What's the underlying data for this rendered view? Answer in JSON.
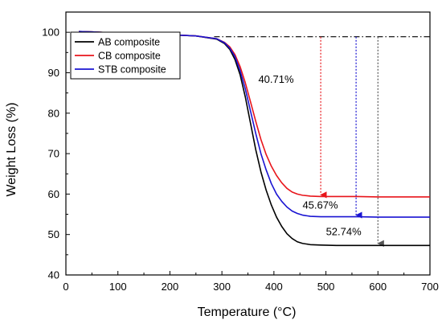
{
  "chart_data": {
    "type": "line",
    "xlabel": "Temperature (°C)",
    "ylabel": "Weight Loss (%)",
    "xlim": [
      0,
      700
    ],
    "ylim": [
      40,
      105
    ],
    "xticks": [
      0,
      100,
      200,
      300,
      400,
      500,
      600,
      700
    ],
    "yticks": [
      40,
      50,
      60,
      70,
      80,
      90,
      100
    ],
    "grid": false,
    "legend_position": "top-left",
    "series": [
      {
        "name": "AB composite",
        "color": "#000000",
        "x": [
          25,
          50,
          100,
          150,
          200,
          250,
          290,
          305,
          315,
          325,
          335,
          345,
          355,
          365,
          375,
          385,
          395,
          405,
          415,
          425,
          435,
          445,
          455,
          470,
          490,
          520,
          560,
          600,
          650,
          700
        ],
        "y": [
          100.2,
          100.1,
          99.8,
          99.6,
          99.4,
          99.1,
          98.3,
          97.2,
          95.8,
          93.3,
          89.5,
          84.0,
          77.5,
          71.0,
          65.5,
          61.0,
          57.3,
          54.3,
          52.0,
          50.2,
          49.0,
          48.2,
          47.8,
          47.5,
          47.4,
          47.3,
          47.3,
          47.3,
          47.3,
          47.3
        ]
      },
      {
        "name": "CB composite",
        "color": "#e8151b",
        "x": [
          25,
          50,
          100,
          150,
          200,
          250,
          290,
          305,
          315,
          325,
          335,
          345,
          355,
          365,
          375,
          385,
          395,
          405,
          415,
          425,
          435,
          445,
          455,
          470,
          490,
          520,
          560,
          600,
          650,
          700
        ],
        "y": [
          100.2,
          100.1,
          99.8,
          99.6,
          99.4,
          99.1,
          98.4,
          97.5,
          96.4,
          94.5,
          91.5,
          87.5,
          82.8,
          78.0,
          73.5,
          69.8,
          66.9,
          64.6,
          62.8,
          61.4,
          60.5,
          60.0,
          59.7,
          59.5,
          59.4,
          59.4,
          59.4,
          59.3,
          59.3,
          59.3
        ]
      },
      {
        "name": "STB composite",
        "color": "#1a14d2",
        "x": [
          25,
          50,
          100,
          150,
          200,
          250,
          290,
          305,
          315,
          325,
          335,
          345,
          355,
          365,
          375,
          385,
          395,
          405,
          415,
          425,
          435,
          445,
          455,
          470,
          490,
          520,
          560,
          600,
          650,
          700
        ],
        "y": [
          100.2,
          100.1,
          99.8,
          99.6,
          99.4,
          99.1,
          98.4,
          97.4,
          96.1,
          94.0,
          90.5,
          86.0,
          80.5,
          75.0,
          70.0,
          66.0,
          62.6,
          60.0,
          58.2,
          56.8,
          55.8,
          55.2,
          54.8,
          54.5,
          54.4,
          54.4,
          54.4,
          54.3,
          54.3,
          54.3
        ]
      }
    ],
    "reference_line": {
      "y": 98.9,
      "x_start": 285,
      "x_end": 700,
      "color": "#000000",
      "style": "dash-dot"
    },
    "annotations": [
      {
        "text": "40.71%",
        "label_x": 370,
        "label_y": 87.5,
        "color": "#e8151b",
        "arrow_x": 490,
        "arrow_from_y": 98.9,
        "arrow_to_y": 59.4
      },
      {
        "text": "45.67%",
        "label_x": 455,
        "label_y": 56.4,
        "color": "#1a14d2",
        "arrow_x": 558,
        "arrow_from_y": 98.9,
        "arrow_to_y": 54.4
      },
      {
        "text": "52.74%",
        "label_x": 500,
        "label_y": 49.8,
        "color": "#555555",
        "arrow_x": 600,
        "arrow_from_y": 98.9,
        "arrow_to_y": 47.4
      }
    ]
  }
}
